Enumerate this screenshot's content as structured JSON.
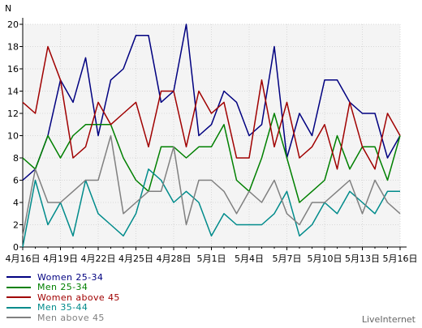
{
  "chart_data": {
    "type": "line",
    "ylabel": "N",
    "ylim": [
      0,
      20
    ],
    "yticks": [
      0,
      2,
      4,
      6,
      8,
      10,
      12,
      14,
      16,
      18,
      20
    ],
    "x": [
      "4月16日",
      "4月17日",
      "4月18日",
      "4月19日",
      "4月20日",
      "4月21日",
      "4月22日",
      "4月23日",
      "4月24日",
      "4月25日",
      "4月26日",
      "4月27日",
      "4月28日",
      "4月29日",
      "4月30日",
      "5月1日",
      "5月2日",
      "5月3日",
      "5月4日",
      "5月5日",
      "5月6日",
      "5月7日",
      "5月8日",
      "5月9日",
      "5月10日",
      "5月11日",
      "5月12日",
      "5月13日",
      "5月14日",
      "5月15日",
      "5月16日"
    ],
    "xtick_labels": [
      "4月16日",
      "4月19日",
      "4月22日",
      "4月25日",
      "4月28日",
      "5月1日",
      "5月4日",
      "5月7日",
      "5月10日",
      "5月13日",
      "5月16日"
    ],
    "grid": true,
    "legend_position": "bottom-left",
    "series": [
      {
        "name": "Women 25-34",
        "color": "#000080",
        "values": [
          6,
          7,
          10,
          15,
          13,
          17,
          10,
          15,
          16,
          19,
          19,
          13,
          14,
          20,
          10,
          11,
          14,
          13,
          10,
          11,
          18,
          8,
          12,
          10,
          15,
          15,
          13,
          12,
          12,
          8,
          10
        ]
      },
      {
        "name": "Men 25-34",
        "color": "#008000",
        "values": [
          8,
          7,
          10,
          8,
          10,
          11,
          11,
          11,
          8,
          6,
          5,
          9,
          9,
          8,
          9,
          9,
          11,
          6,
          5,
          8,
          12,
          8,
          4,
          5,
          6,
          10,
          7,
          9,
          9,
          6,
          10
        ]
      },
      {
        "name": "Women above 45",
        "color": "#a00000",
        "values": [
          13,
          12,
          18,
          15,
          8,
          9,
          13,
          11,
          12,
          13,
          9,
          14,
          14,
          9,
          14,
          12,
          13,
          8,
          8,
          15,
          9,
          13,
          8,
          9,
          11,
          7,
          13,
          9,
          7,
          12,
          10
        ]
      },
      {
        "name": "Men 35-44",
        "color": "#008b8b",
        "values": [
          0,
          6,
          2,
          4,
          1,
          6,
          3,
          2,
          1,
          3,
          7,
          6,
          4,
          5,
          4,
          1,
          3,
          2,
          2,
          2,
          3,
          5,
          1,
          2,
          4,
          3,
          5,
          4,
          3,
          5,
          5
        ]
      },
      {
        "name": "Men above 45",
        "color": "#808080",
        "values": [
          1,
          7,
          4,
          4,
          5,
          6,
          6,
          10,
          3,
          4,
          5,
          5,
          9,
          2,
          6,
          6,
          5,
          3,
          5,
          4,
          6,
          3,
          2,
          4,
          4,
          5,
          6,
          3,
          6,
          4,
          3
        ]
      }
    ]
  },
  "footer": {
    "credit": "LiveInternet"
  }
}
